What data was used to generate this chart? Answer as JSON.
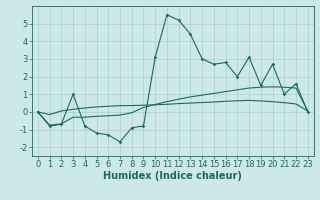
{
  "xlabel": "Humidex (Indice chaleur)",
  "x": [
    0,
    1,
    2,
    3,
    4,
    5,
    6,
    7,
    8,
    9,
    10,
    11,
    12,
    13,
    14,
    15,
    16,
    17,
    18,
    19,
    20,
    21,
    22,
    23
  ],
  "y_main": [
    0.0,
    -0.8,
    -0.7,
    1.0,
    -0.8,
    -1.2,
    -1.3,
    -1.7,
    -0.9,
    -0.8,
    3.1,
    5.5,
    5.2,
    4.4,
    3.0,
    2.7,
    2.8,
    2.0,
    3.1,
    1.5,
    2.7,
    1.0,
    1.6,
    0.0
  ],
  "y_trend1": [
    0.0,
    -0.75,
    -0.68,
    -0.3,
    -0.3,
    -0.25,
    -0.22,
    -0.18,
    -0.05,
    0.25,
    0.42,
    0.58,
    0.72,
    0.85,
    0.95,
    1.05,
    1.15,
    1.25,
    1.35,
    1.4,
    1.42,
    1.4,
    1.35,
    0.05
  ],
  "y_trend2": [
    0.0,
    -0.15,
    0.05,
    0.15,
    0.22,
    0.28,
    0.32,
    0.35,
    0.36,
    0.38,
    0.4,
    0.43,
    0.47,
    0.5,
    0.53,
    0.56,
    0.6,
    0.63,
    0.65,
    0.62,
    0.58,
    0.52,
    0.45,
    0.05
  ],
  "ylim": [
    -2.5,
    6.0
  ],
  "xlim": [
    -0.5,
    23.5
  ],
  "yticks": [
    -2,
    -1,
    0,
    1,
    2,
    3,
    4,
    5
  ],
  "line_color": "#1a6b5a",
  "bg_color": "#cce8e8",
  "grid_color": "#aacfcf",
  "tick_fontsize": 6,
  "label_fontsize": 7
}
